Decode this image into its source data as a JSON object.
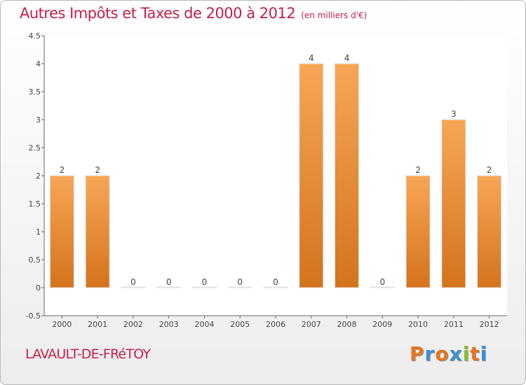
{
  "header": {
    "title": "Autres Impôts et Taxes de 2000 à 2012",
    "subtitle": "(en milliers d'€)"
  },
  "footer": {
    "commune": "LAVAULT-DE-FRéTOY",
    "logo_letters": [
      "P",
      "r",
      "o",
      "x",
      "i",
      "t",
      "i"
    ],
    "logo_colors": [
      "#e8741f",
      "#3a8fd0",
      "#e8741f",
      "#3a8fd0",
      "#8bbf2a",
      "#e8741f",
      "#3a8fd0"
    ]
  },
  "chart_data": {
    "type": "bar",
    "categories": [
      "2000",
      "2001",
      "2002",
      "2003",
      "2004",
      "2005",
      "2006",
      "2007",
      "2008",
      "2009",
      "2010",
      "2011",
      "2012"
    ],
    "values": [
      2,
      2,
      0,
      0,
      0,
      0,
      0,
      4,
      4,
      0,
      2,
      3,
      2
    ],
    "data_labels": [
      "2",
      "2",
      "0",
      "0",
      "0",
      "0",
      "0",
      "4",
      "4",
      "0",
      "2",
      "3",
      "2"
    ],
    "y_ticks": [
      "-0.5",
      "0",
      "0.5",
      "1",
      "1.5",
      "2",
      "2.5",
      "3",
      "3.5",
      "4",
      "4.5"
    ],
    "y_tick_values": [
      -0.5,
      0,
      0.5,
      1,
      1.5,
      2,
      2.5,
      3,
      3.5,
      4,
      4.5
    ],
    "ylim": [
      -0.5,
      4.5
    ],
    "grid": false,
    "bar_color_top": "#f7a655",
    "bar_color_bottom": "#d4731c"
  }
}
